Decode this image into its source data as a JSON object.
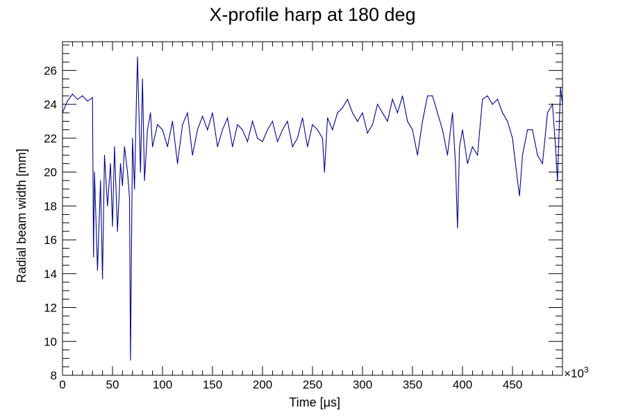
{
  "chart_data": {
    "type": "line",
    "title": "X-profile harp at 180 deg",
    "xlabel": "Time [μs]",
    "ylabel": "Radial beam width [mm]",
    "x_exponent_label": "×10",
    "x_exponent_power": "3",
    "xlim": [
      0,
      500
    ],
    "ylim": [
      8,
      27.7
    ],
    "x_ticks": [
      "0",
      "50",
      "100",
      "150",
      "200",
      "250",
      "300",
      "350",
      "400",
      "450"
    ],
    "y_ticks": [
      "8",
      "10",
      "12",
      "14",
      "16",
      "18",
      "20",
      "22",
      "24",
      "26"
    ],
    "grid": false,
    "series": [
      {
        "color": "#00008b",
        "x": [
          0,
          5,
          10,
          15,
          20,
          25,
          30,
          31,
          32,
          35,
          38,
          40,
          42,
          45,
          48,
          50,
          52,
          55,
          58,
          60,
          62,
          65,
          67,
          68,
          70,
          72,
          74,
          75,
          78,
          80,
          82,
          85,
          88,
          90,
          95,
          100,
          105,
          110,
          115,
          120,
          125,
          130,
          135,
          140,
          145,
          150,
          155,
          160,
          165,
          170,
          175,
          180,
          185,
          190,
          195,
          200,
          205,
          210,
          215,
          220,
          225,
          230,
          235,
          240,
          245,
          250,
          255,
          260,
          262,
          265,
          270,
          275,
          280,
          285,
          290,
          295,
          300,
          305,
          310,
          315,
          320,
          325,
          330,
          335,
          340,
          345,
          350,
          355,
          360,
          365,
          370,
          375,
          380,
          385,
          390,
          393,
          395,
          397,
          400,
          405,
          410,
          415,
          420,
          425,
          430,
          435,
          440,
          445,
          450,
          455,
          457,
          460,
          465,
          470,
          475,
          480,
          485,
          490,
          493,
          495,
          498,
          500
        ],
        "y": [
          23.5,
          24.2,
          24.6,
          24.3,
          24.5,
          24.2,
          24.4,
          15.0,
          20.0,
          14.2,
          19.5,
          13.7,
          21.0,
          18.0,
          20.5,
          16.8,
          21.5,
          16.5,
          20.5,
          19.2,
          21.5,
          20.0,
          18.5,
          8.9,
          22.0,
          19.0,
          24.5,
          26.8,
          20.0,
          25.5,
          19.5,
          22.5,
          23.5,
          21.5,
          22.8,
          22.5,
          21.5,
          23.0,
          20.5,
          22.8,
          23.5,
          21.0,
          22.5,
          23.3,
          22.5,
          23.5,
          21.5,
          22.5,
          23.2,
          21.5,
          22.8,
          22.5,
          21.8,
          23.0,
          22.0,
          21.8,
          22.5,
          23.0,
          21.8,
          22.5,
          23.0,
          21.5,
          22.0,
          23.2,
          21.5,
          22.8,
          22.5,
          22.0,
          20.0,
          23.2,
          22.5,
          23.5,
          23.8,
          24.3,
          23.5,
          23.0,
          23.5,
          22.3,
          22.8,
          24.0,
          23.5,
          23.0,
          24.3,
          23.5,
          24.5,
          23.0,
          22.5,
          21.0,
          23.0,
          24.5,
          24.5,
          23.5,
          22.5,
          21.0,
          23.5,
          20.5,
          16.7,
          21.5,
          22.5,
          20.5,
          21.5,
          21.0,
          24.3,
          24.5,
          24.0,
          24.3,
          23.5,
          23.0,
          22.0,
          19.5,
          18.6,
          21.0,
          22.5,
          22.5,
          21.0,
          20.5,
          23.5,
          24.0,
          21.5,
          19.5,
          25.0,
          24.0
        ]
      }
    ]
  }
}
